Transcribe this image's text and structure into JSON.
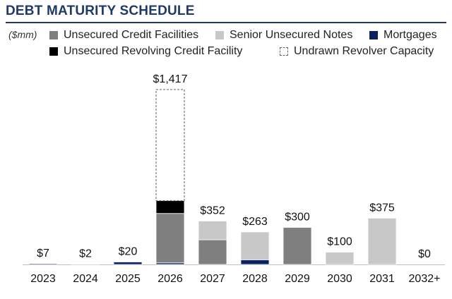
{
  "page": {
    "title": "DEBT MATURITY SCHEDULE",
    "unit": "($mm)"
  },
  "chart_data": {
    "type": "bar",
    "stacked": true,
    "title": "DEBT MATURITY SCHEDULE",
    "unit_label": "($mm)",
    "categories": [
      "2023",
      "2024",
      "2025",
      "2026",
      "2027",
      "2028",
      "2029",
      "2030",
      "2031",
      "2032+"
    ],
    "series": [
      {
        "key": "mortgages",
        "name": "Mortgages",
        "color": "#0b2260",
        "values": [
          7,
          2,
          20,
          13,
          0,
          38,
          0,
          0,
          0,
          0
        ]
      },
      {
        "key": "unsecured_credit",
        "name": "Unsecured Credit Facilities",
        "color": "#7f7f7f",
        "values": [
          0,
          0,
          0,
          400,
          200,
          0,
          300,
          0,
          0,
          0
        ]
      },
      {
        "key": "senior_notes",
        "name": "Senior Unsecured Notes",
        "color": "#c8c8c8",
        "values": [
          0,
          0,
          0,
          0,
          152,
          225,
          0,
          100,
          375,
          0
        ]
      },
      {
        "key": "revolver",
        "name": "Unsecured Revolving Credit Facility",
        "color": "#000000",
        "values": [
          0,
          0,
          0,
          104,
          0,
          0,
          0,
          0,
          0,
          0
        ]
      },
      {
        "key": "undrawn",
        "name": "Undrawn Revolver Capacity",
        "color": "#ffffff",
        "dashed": true,
        "values": [
          0,
          0,
          0,
          900,
          0,
          0,
          0,
          0,
          0,
          0
        ]
      }
    ],
    "totals": [
      "$7",
      "$2",
      "$20",
      "$1,417",
      "$352",
      "$263",
      "$300",
      "$100",
      "$375",
      "$0"
    ],
    "ylim": [
      0,
      1417
    ],
    "xlabel": "",
    "ylabel": "",
    "legend": {
      "position": "top",
      "items": [
        {
          "label": "Unsecured Credit Facilities",
          "color": "#7f7f7f"
        },
        {
          "label": "Senior Unsecured Notes",
          "color": "#c8c8c8"
        },
        {
          "label": "Mortgages",
          "color": "#0b2260"
        },
        {
          "label": "Unsecured Revolving Credit Facility",
          "color": "#000000"
        },
        {
          "label": "Undrawn Revolver Capacity",
          "color": "#ffffff",
          "dashed": true
        }
      ]
    }
  }
}
